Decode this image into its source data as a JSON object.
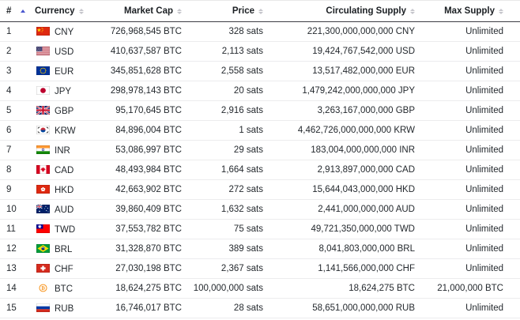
{
  "colors": {
    "sort_active_arrow": "#4956ce",
    "sort_inactive_arrow": "#c6c6cc",
    "header_border": "#3d3d44",
    "row_border": "#ececee",
    "text": "#24292e",
    "bitcoin_orange": "#F7931A"
  },
  "table": {
    "columns": [
      {
        "label": "#",
        "sort_state": "ascending"
      },
      {
        "label": "Currency",
        "sort_state": "none"
      },
      {
        "label": "Market Cap",
        "sort_state": "none"
      },
      {
        "label": "Price",
        "sort_state": "none"
      },
      {
        "label": "Circulating Supply",
        "sort_state": "none"
      },
      {
        "label": "Max Supply",
        "sort_state": "none"
      }
    ],
    "rows": [
      {
        "rank": "1",
        "flag": "cny",
        "currency": "CNY",
        "market_cap": "726,968,545 BTC",
        "price": "328 sats",
        "circulating_supply": "221,300,000,000,000 CNY",
        "max_supply": "Unlimited"
      },
      {
        "rank": "2",
        "flag": "usd",
        "currency": "USD",
        "market_cap": "410,637,587 BTC",
        "price": "2,113 sats",
        "circulating_supply": "19,424,767,542,000 USD",
        "max_supply": "Unlimited"
      },
      {
        "rank": "3",
        "flag": "eur",
        "currency": "EUR",
        "market_cap": "345,851,628 BTC",
        "price": "2,558 sats",
        "circulating_supply": "13,517,482,000,000 EUR",
        "max_supply": "Unlimited"
      },
      {
        "rank": "4",
        "flag": "jpy",
        "currency": "JPY",
        "market_cap": "298,978,143 BTC",
        "price": "20 sats",
        "circulating_supply": "1,479,242,000,000,000 JPY",
        "max_supply": "Unlimited"
      },
      {
        "rank": "5",
        "flag": "gbp",
        "currency": "GBP",
        "market_cap": "95,170,645 BTC",
        "price": "2,916 sats",
        "circulating_supply": "3,263,167,000,000 GBP",
        "max_supply": "Unlimited"
      },
      {
        "rank": "6",
        "flag": "krw",
        "currency": "KRW",
        "market_cap": "84,896,004 BTC",
        "price": "1 sats",
        "circulating_supply": "4,462,726,000,000,000 KRW",
        "max_supply": "Unlimited"
      },
      {
        "rank": "7",
        "flag": "inr",
        "currency": "INR",
        "market_cap": "53,086,997 BTC",
        "price": "29 sats",
        "circulating_supply": "183,004,000,000,000 INR",
        "max_supply": "Unlimited"
      },
      {
        "rank": "8",
        "flag": "cad",
        "currency": "CAD",
        "market_cap": "48,493,984 BTC",
        "price": "1,664 sats",
        "circulating_supply": "2,913,897,000,000 CAD",
        "max_supply": "Unlimited"
      },
      {
        "rank": "9",
        "flag": "hkd",
        "currency": "HKD",
        "market_cap": "42,663,902 BTC",
        "price": "272 sats",
        "circulating_supply": "15,644,043,000,000 HKD",
        "max_supply": "Unlimited"
      },
      {
        "rank": "10",
        "flag": "aud",
        "currency": "AUD",
        "market_cap": "39,860,409 BTC",
        "price": "1,632 sats",
        "circulating_supply": "2,441,000,000,000 AUD",
        "max_supply": "Unlimited"
      },
      {
        "rank": "11",
        "flag": "twd",
        "currency": "TWD",
        "market_cap": "37,553,782 BTC",
        "price": "75 sats",
        "circulating_supply": "49,721,350,000,000 TWD",
        "max_supply": "Unlimited"
      },
      {
        "rank": "12",
        "flag": "brl",
        "currency": "BRL",
        "market_cap": "31,328,870 BTC",
        "price": "389 sats",
        "circulating_supply": "8,041,803,000,000 BRL",
        "max_supply": "Unlimited"
      },
      {
        "rank": "13",
        "flag": "chf",
        "currency": "CHF",
        "market_cap": "27,030,198 BTC",
        "price": "2,367 sats",
        "circulating_supply": "1,141,566,000,000 CHF",
        "max_supply": "Unlimited"
      },
      {
        "rank": "14",
        "flag": "btc",
        "currency": "BTC",
        "market_cap": "18,624,275 BTC",
        "price": "100,000,000 sats",
        "circulating_supply": "18,624,275 BTC",
        "max_supply": "21,000,000 BTC"
      },
      {
        "rank": "15",
        "flag": "rub",
        "currency": "RUB",
        "market_cap": "16,746,017 BTC",
        "price": "28 sats",
        "circulating_supply": "58,651,000,000,000 RUB",
        "max_supply": "Unlimited"
      }
    ]
  }
}
